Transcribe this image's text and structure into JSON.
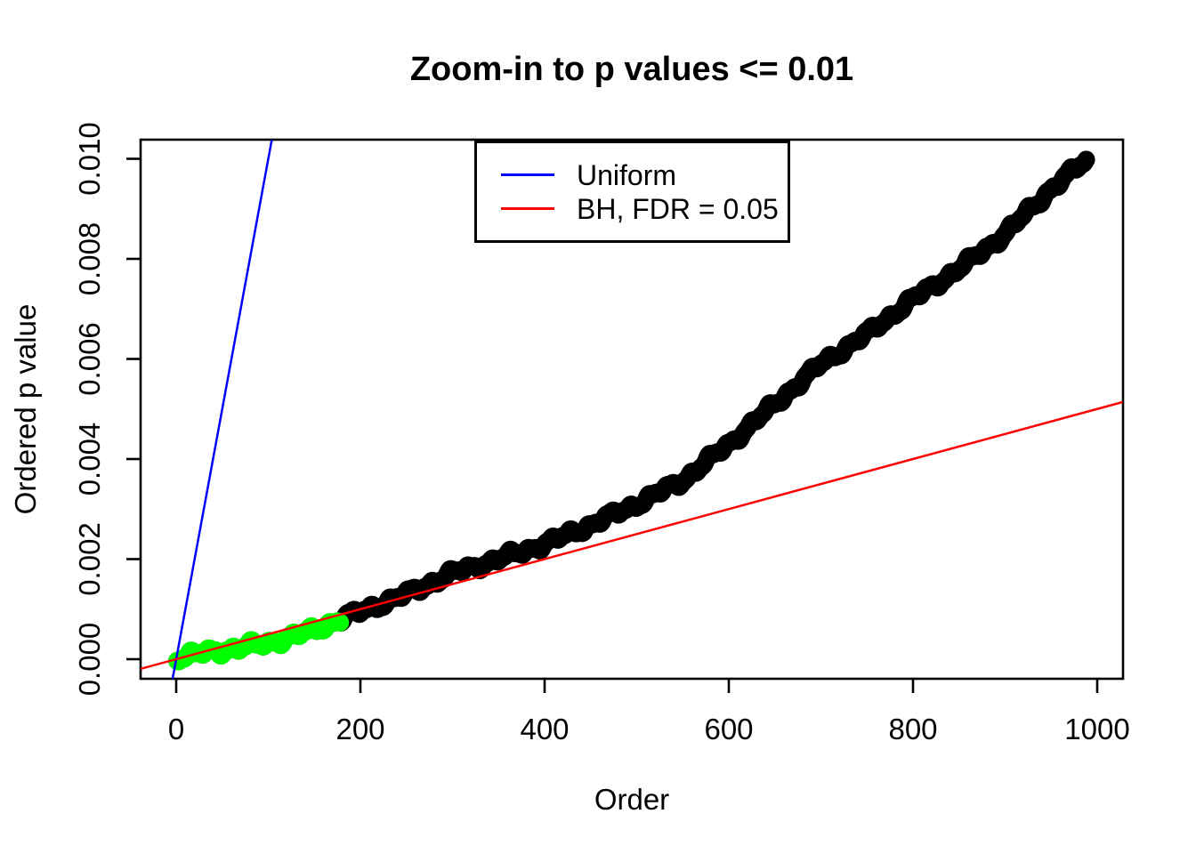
{
  "figure": {
    "background_color": "#FFFFFF",
    "text_color": "#000000"
  },
  "chart_data": {
    "type": "scatter",
    "title": "Zoom-in to p values <= 0.01",
    "xlabel": "Order",
    "ylabel": "Ordered p value",
    "xlim": [
      -38.5,
      1027.5
    ],
    "ylim": [
      -0.00039,
      0.01037
    ],
    "grid": false,
    "x_ticks": {
      "values": [
        0,
        200,
        400,
        600,
        800,
        1000
      ],
      "labels": [
        "0",
        "200",
        "400",
        "600",
        "800",
        "1000"
      ]
    },
    "y_ticks": {
      "values": [
        0,
        0.002,
        0.004,
        0.006,
        0.008,
        0.01
      ],
      "labels": [
        "0.000",
        "0.002",
        "0.004",
        "0.006",
        "0.008",
        "0.010"
      ]
    },
    "legend": {
      "position": "top-center",
      "items": [
        {
          "label": "Uniform",
          "color": "#0000FF",
          "type": "line"
        },
        {
          "label": "BH, FDR = 0.05",
          "color": "#FF0000",
          "type": "line"
        }
      ]
    },
    "lines": [
      {
        "name": "uniform-expectation",
        "color": "#0000FF",
        "slope_p_per_order": 0.0001,
        "intercept": 0,
        "width": 2.5
      },
      {
        "name": "bh-threshold",
        "color": "#FF0000",
        "slope_p_per_order": 5e-06,
        "intercept": 0,
        "width": 2.5
      }
    ],
    "series": [
      {
        "name": "ordered-p-values",
        "marker": "filled-circle",
        "color": "#000000",
        "n_points": 988,
        "p_max_shown": 0.01,
        "anchors": [
          [
            1,
            4e-05
          ],
          [
            50,
            0.00018
          ],
          [
            100,
            0.00032
          ],
          [
            150,
            0.00058
          ],
          [
            178,
            0.0008
          ],
          [
            200,
            0.00095
          ],
          [
            250,
            0.0013
          ],
          [
            300,
            0.00172
          ],
          [
            350,
            0.002
          ],
          [
            400,
            0.0023
          ],
          [
            450,
            0.00268
          ],
          [
            500,
            0.0031
          ],
          [
            550,
            0.00357
          ],
          [
            600,
            0.0043
          ],
          [
            650,
            0.0051
          ],
          [
            700,
            0.0059
          ],
          [
            750,
            0.0065
          ],
          [
            800,
            0.0072
          ],
          [
            850,
            0.0078
          ],
          [
            900,
            0.0085
          ],
          [
            950,
            0.0094
          ],
          [
            988,
            0.00997
          ]
        ]
      },
      {
        "name": "bh-significant",
        "marker": "filled-circle",
        "color": "#00FF00",
        "order_range": [
          1,
          178
        ]
      }
    ]
  }
}
